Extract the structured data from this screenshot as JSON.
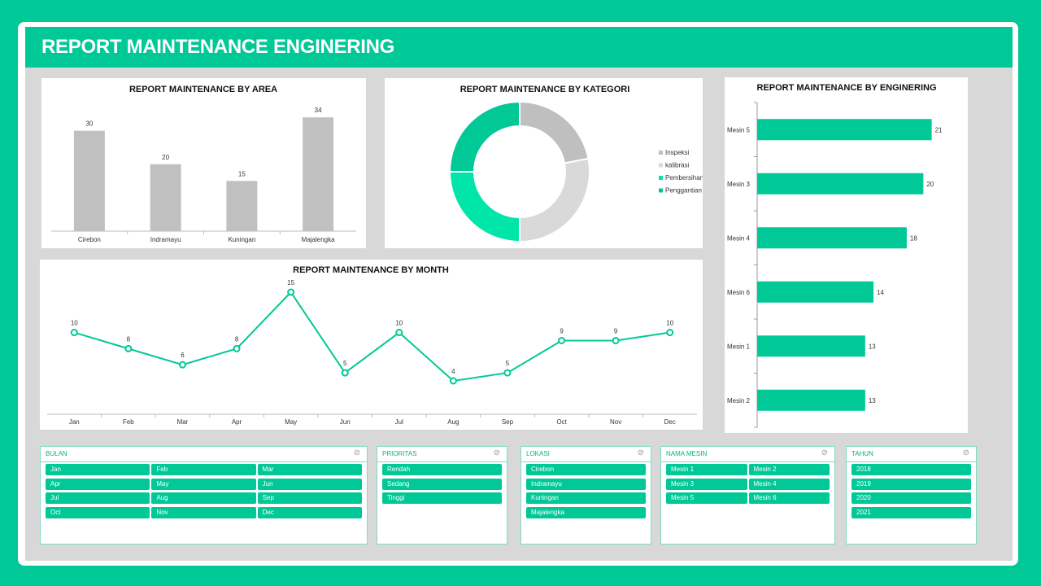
{
  "page_title": "REPORT MAINTENANCE ENGINERING",
  "colors": {
    "accent": "#00c897",
    "gray_bar": "#c0c0c0",
    "light_gray": "#d9d9d9",
    "bright_green": "#00e6a8"
  },
  "chart_data": [
    {
      "type": "bar",
      "title": "REPORT MAINTENANCE BY AREA",
      "categories": [
        "Cirebon",
        "Indramayu",
        "Kuningan",
        "Majalengka"
      ],
      "values": [
        30,
        20,
        15,
        34
      ],
      "ylim": [
        0,
        36
      ]
    },
    {
      "type": "pie",
      "title": "REPORT MAINTENANCE BY KATEGORI",
      "labels": [
        "Inspeksi",
        "kalibrasi",
        "Pembersihan",
        "Penggantian"
      ],
      "values": [
        22,
        28,
        25,
        25
      ],
      "colors": [
        "#bfbfbf",
        "#d9d9d9",
        "#00e6a8",
        "#00c897"
      ],
      "legend": "right"
    },
    {
      "type": "bar",
      "orientation": "horizontal",
      "title": "REPORT MAINTENANCE BY ENGINERING",
      "categories": [
        "Mesin 5",
        "Mesin 3",
        "Mesin 4",
        "Mesin 6",
        "Mesin 1",
        "Mesin 2"
      ],
      "values": [
        21,
        20,
        18,
        14,
        13,
        13
      ],
      "xlim": [
        0,
        23
      ]
    },
    {
      "type": "line",
      "title": "REPORT MAINTENANCE BY MONTH",
      "categories": [
        "Jan",
        "Feb",
        "Mar",
        "Apr",
        "May",
        "Jun",
        "Jul",
        "Aug",
        "Sep",
        "Oct",
        "Nov",
        "Dec"
      ],
      "values": [
        10,
        8,
        6,
        8,
        15,
        5,
        10,
        4,
        5,
        9,
        9,
        10
      ],
      "ylim": [
        3,
        16
      ]
    }
  ],
  "slicers": [
    {
      "title": "BULAN",
      "cols": 3,
      "items": [
        "Jan",
        "Feb",
        "Mar",
        "Apr",
        "May",
        "Jun",
        "Jul",
        "Aug",
        "Sep",
        "Oct",
        "Nov",
        "Dec"
      ]
    },
    {
      "title": "PRIORITAS",
      "cols": 1,
      "items": [
        "Rendah",
        "Sedang",
        "Tinggi"
      ]
    },
    {
      "title": "LOKASI",
      "cols": 1,
      "items": [
        "Cirebon",
        "Indramayu",
        "Kuningan",
        "Majalengka"
      ]
    },
    {
      "title": "NAMA MESIN",
      "cols": 2,
      "items": [
        "Mesin 1",
        "Mesin 2",
        "Mesin 3",
        "Mesin 4",
        "Mesin 5",
        "Mesin 6"
      ]
    },
    {
      "title": "TAHUN",
      "cols": 1,
      "items": [
        "2018",
        "2019",
        "2020",
        "2021"
      ]
    }
  ]
}
